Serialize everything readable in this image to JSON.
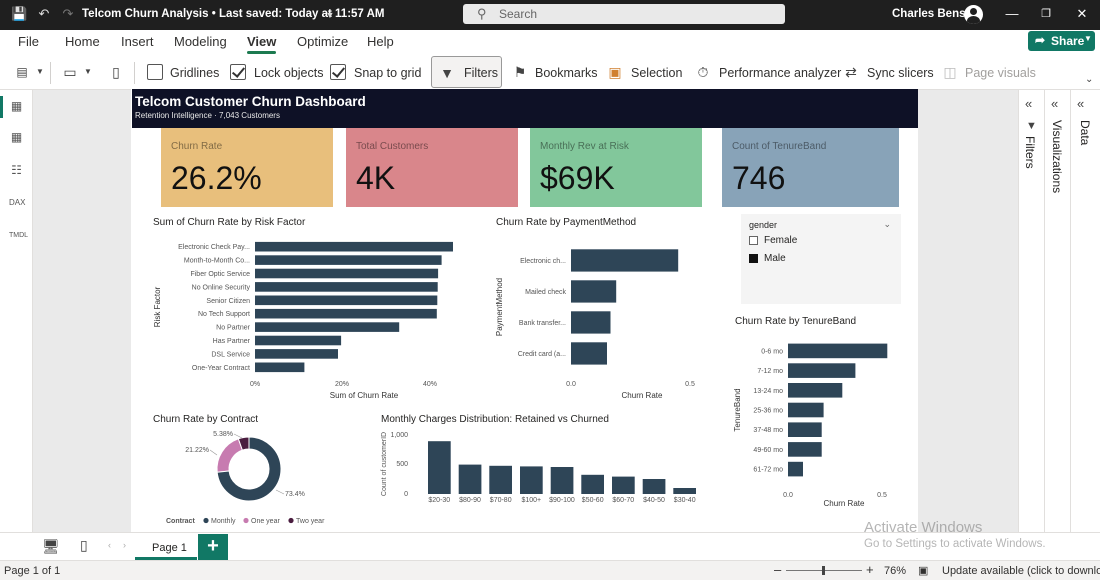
{
  "titlebar": {
    "doc_title": "Telcom Churn Analysis • Last saved: Today at 11:57 AM",
    "search_placeholder": "Search",
    "user_name": "Charles Benson"
  },
  "menu": [
    "File",
    "Home",
    "Insert",
    "Modeling",
    "View",
    "Optimize",
    "Help"
  ],
  "menu_active": "View",
  "share_label": "Share",
  "ribbon": {
    "gridlines": "Gridlines",
    "lock_objects": "Lock objects",
    "snap_to_grid": "Snap to grid",
    "filters": "Filters",
    "bookmarks": "Bookmarks",
    "selection": "Selection",
    "performance_analyzer": "Performance analyzer",
    "sync_slicers": "Sync slicers",
    "page_visuals": "Page visuals"
  },
  "dashboard": {
    "title": "Telcom Customer Churn Dashboard",
    "subtitle": "Retention Intelligence · 7,043 Customers"
  },
  "kpis": [
    {
      "label": "Churn Rate",
      "value": "26.2%",
      "color": "#e8bf7c"
    },
    {
      "label": "Total Customers",
      "value": "4K",
      "color": "#d9868b"
    },
    {
      "label": "Monthly Rev at Risk",
      "value": "$69K",
      "color": "#82c79b"
    },
    {
      "label": "Count of TenureBand",
      "value": "746",
      "color": "#88a3b8"
    }
  ],
  "slicer": {
    "title": "gender",
    "options": [
      {
        "label": "Female",
        "selected": false
      },
      {
        "label": "Male",
        "selected": true
      }
    ]
  },
  "panes": {
    "filters": "Filters",
    "visualizations": "Visualizations",
    "data": "Data"
  },
  "page_tab": "Page 1",
  "status": {
    "page_of": "Page 1 of 1",
    "zoom": "76%",
    "update": "Update available (click to download)"
  },
  "watermark": {
    "line1": "Activate Windows",
    "line2": "Go to Settings to activate Windows."
  },
  "colors": {
    "bar": "#2e4557",
    "accent": "#117865",
    "banner": "#0e1126"
  },
  "chart_data": [
    {
      "id": "risk",
      "type": "bar",
      "orientation": "horizontal",
      "title": "Sum of Churn Rate by Risk Factor",
      "xlabel": "Sum of Churn Rate",
      "ylabel": "Risk Factor",
      "categories": [
        "Electronic Check Pay...",
        "Month-to-Month Co...",
        "Fiber Optic Service",
        "No Online Security",
        "Senior Citizen",
        "No Tech Support",
        "No Partner",
        "Has Partner",
        "DSL Service",
        "One-Year Contract"
      ],
      "values": [
        45.3,
        42.7,
        41.9,
        41.8,
        41.7,
        41.6,
        33,
        19.7,
        19,
        11.3
      ],
      "xticks": [
        "0%",
        "20%",
        "40%"
      ],
      "xlim": [
        0,
        45.3
      ]
    },
    {
      "id": "payment",
      "type": "bar",
      "orientation": "horizontal",
      "title": "Churn Rate by PaymentMethod",
      "xlabel": "Churn Rate",
      "ylabel": "PaymentMethod",
      "categories": [
        "Electronic ch...",
        "Mailed check",
        "Bank transfer...",
        "Credit card (a..."
      ],
      "values": [
        0.453,
        0.191,
        0.167,
        0.152
      ],
      "xticks": [
        "0.0",
        "0.5"
      ],
      "xlim": [
        0,
        0.6
      ]
    },
    {
      "id": "tenure",
      "type": "bar",
      "orientation": "horizontal",
      "title": "Churn Rate by TenureBand",
      "xlabel": "Churn Rate",
      "ylabel": "TenureBand",
      "categories": [
        "0-6 mo",
        "7-12 mo",
        "13-24 mo",
        "25-36 mo",
        "37-48 mo",
        "49-60 mo",
        "61-72 mo"
      ],
      "values": [
        0.53,
        0.36,
        0.29,
        0.19,
        0.18,
        0.18,
        0.08
      ],
      "xticks": [
        "0.0",
        "0.5"
      ],
      "xlim": [
        0,
        0.55
      ]
    },
    {
      "id": "contract",
      "type": "pie",
      "title": "Churn Rate by Contract",
      "legend_title": "Contract",
      "slices": [
        {
          "label": "Monthly",
          "value": 73.4,
          "text": "73.4%",
          "color": "#2e4557"
        },
        {
          "label": "One year",
          "value": 21.22,
          "text": "21.22%",
          "color": "#c77bb0"
        },
        {
          "label": "Two year",
          "value": 5.38,
          "text": "5.38%",
          "color": "#4a1d3f"
        }
      ]
    },
    {
      "id": "monthly",
      "type": "bar",
      "orientation": "vertical",
      "title": "Monthly Charges Distribution: Retained vs Churned",
      "ylabel": "Count of customerID",
      "categories": [
        "$20-30",
        "$80-90",
        "$70-80",
        "$100+",
        "$90-100",
        "$50-60",
        "$60-70",
        "$40-50",
        "$30-40"
      ],
      "values": [
        880,
        490,
        470,
        460,
        450,
        320,
        290,
        250,
        100
      ],
      "yticks": [
        "1,000",
        "500",
        "0"
      ],
      "ylim": [
        0,
        1000
      ]
    }
  ]
}
